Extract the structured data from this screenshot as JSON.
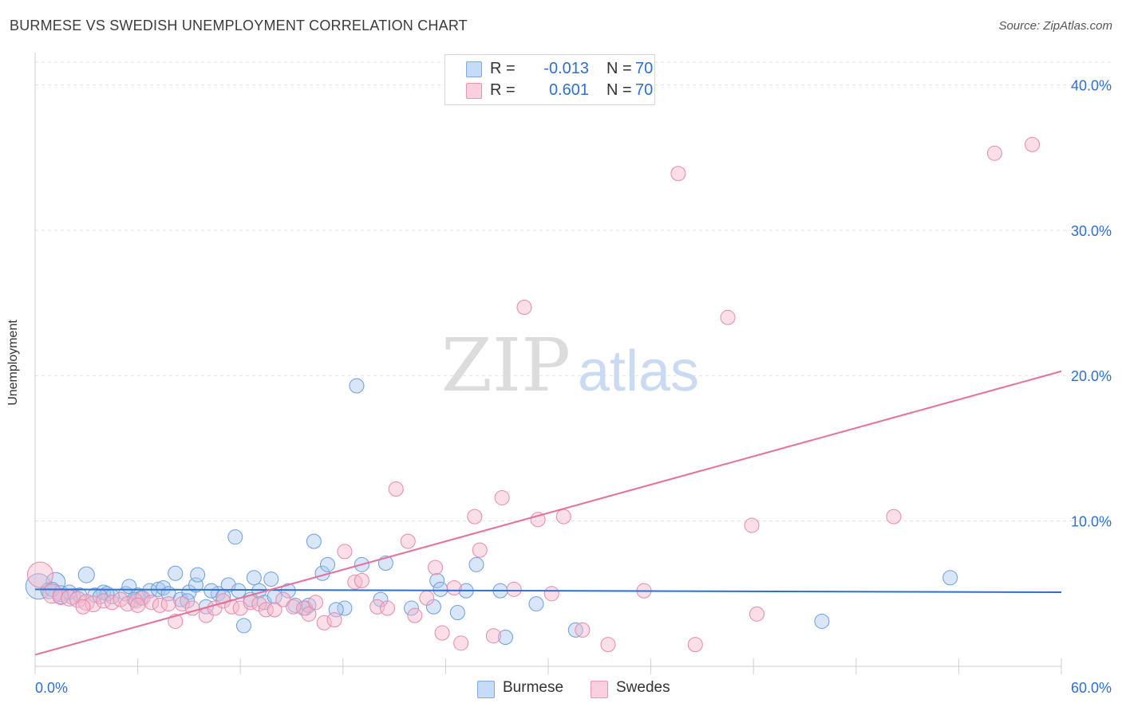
{
  "header": {
    "title": "BURMESE VS SWEDISH UNEMPLOYMENT CORRELATION CHART",
    "source": "Source: ZipAtlas.com"
  },
  "watermark": {
    "zip": "ZIP",
    "atlas": "atlas"
  },
  "legend": {
    "rows": [
      {
        "r_label": "R =",
        "r_value": "-0.013",
        "n_label": "N =",
        "n_value": "70",
        "color": "#a9c7f0"
      },
      {
        "r_label": "R =",
        "r_value": "0.601",
        "n_label": "N =",
        "n_value": "70",
        "color": "#f5b8cb"
      }
    ]
  },
  "bottom_legend": {
    "burmese": "Burmese",
    "swedes": "Swedes"
  },
  "chart_data": {
    "type": "scatter",
    "title": "BURMESE VS SWEDISH UNEMPLOYMENT CORRELATION CHART",
    "xlabel": "",
    "ylabel": "Unemployment",
    "xlim": [
      0,
      60
    ],
    "ylim": [
      0,
      42
    ],
    "x_tick_labels": [
      "0.0%",
      "60.0%"
    ],
    "y_ticks": [
      10,
      20,
      30,
      40
    ],
    "y_tick_labels": [
      "10.0%",
      "20.0%",
      "30.0%",
      "40.0%"
    ],
    "grid": true,
    "legend_position": "top-center",
    "series": [
      {
        "name": "Burmese",
        "color": "#a9c7f0",
        "stroke": "#6b9ee0",
        "trend_color": "#2e6fd1",
        "trend": {
          "x": [
            0,
            60
          ],
          "y": [
            5.3,
            5.1
          ]
        },
        "points": [
          [
            0.2,
            5.5,
            16
          ],
          [
            1.2,
            5.8,
            12
          ],
          [
            0.8,
            5.2,
            10
          ],
          [
            1.5,
            5.0,
            10
          ],
          [
            2.2,
            4.8,
            10
          ],
          [
            3.0,
            6.3,
            10
          ],
          [
            2.6,
            4.9,
            9
          ],
          [
            4.0,
            5.1,
            9
          ],
          [
            4.5,
            4.8,
            9
          ],
          [
            5.3,
            5.0,
            9
          ],
          [
            5.5,
            5.5,
            9
          ],
          [
            6.0,
            4.9,
            9
          ],
          [
            6.7,
            5.2,
            9
          ],
          [
            7.2,
            5.3,
            9
          ],
          [
            7.5,
            5.4,
            9
          ],
          [
            7.8,
            5.0,
            9
          ],
          [
            8.2,
            6.4,
            9
          ],
          [
            8.5,
            4.6,
            9
          ],
          [
            9.0,
            5.1,
            9
          ],
          [
            9.4,
            5.6,
            9
          ],
          [
            9.5,
            6.3,
            9
          ],
          [
            10.0,
            4.1,
            9
          ],
          [
            10.7,
            5.0,
            9
          ],
          [
            11.3,
            5.6,
            9
          ],
          [
            11.7,
            8.9,
            9
          ],
          [
            11.9,
            5.2,
            9
          ],
          [
            12.2,
            2.8,
            9
          ],
          [
            12.8,
            6.1,
            9
          ],
          [
            13.1,
            5.2,
            9
          ],
          [
            13.8,
            6.0,
            9
          ],
          [
            14.8,
            5.2,
            9
          ],
          [
            15.8,
            4.0,
            9
          ],
          [
            16.3,
            8.6,
            9
          ],
          [
            16.8,
            6.4,
            9
          ],
          [
            17.1,
            7.0,
            9
          ],
          [
            18.1,
            4.0,
            9
          ],
          [
            19.1,
            7.0,
            9
          ],
          [
            18.8,
            19.3,
            9
          ],
          [
            20.5,
            7.1,
            9
          ],
          [
            23.3,
            4.1,
            9
          ],
          [
            23.5,
            5.9,
            9
          ],
          [
            23.7,
            5.3,
            9
          ],
          [
            24.7,
            3.7,
            9
          ],
          [
            25.2,
            5.2,
            9
          ],
          [
            25.8,
            7.0,
            9
          ],
          [
            27.2,
            5.2,
            9
          ],
          [
            27.5,
            2.0,
            9
          ],
          [
            29.3,
            4.3,
            9
          ],
          [
            31.6,
            2.5,
            9
          ],
          [
            1.5,
            4.8,
            9
          ],
          [
            2.0,
            5.1,
            9
          ],
          [
            3.5,
            4.9,
            9
          ],
          [
            4.2,
            5.0,
            9
          ],
          [
            6.2,
            4.7,
            9
          ],
          [
            8.9,
            4.5,
            9
          ],
          [
            10.3,
            5.2,
            9
          ],
          [
            11.0,
            4.8,
            9
          ],
          [
            13.4,
            4.4,
            9
          ],
          [
            14.0,
            4.8,
            9
          ],
          [
            15.2,
            4.2,
            9
          ],
          [
            16.0,
            4.2,
            9
          ],
          [
            17.6,
            3.9,
            9
          ],
          [
            20.2,
            4.6,
            9
          ],
          [
            22.0,
            4.0,
            9
          ],
          [
            1.0,
            5.3,
            9
          ],
          [
            3.8,
            4.8,
            9
          ],
          [
            5.8,
            4.6,
            9
          ],
          [
            12.6,
            4.6,
            9
          ],
          [
            46.0,
            3.1,
            9
          ],
          [
            53.5,
            6.1,
            9
          ]
        ]
      },
      {
        "name": "Swedes",
        "color": "#f5b8cb",
        "stroke": "#e889a8",
        "trend_color": "#e86f9b",
        "trend": {
          "x": [
            0,
            60
          ],
          "y": [
            0.8,
            20.3
          ]
        },
        "points": [
          [
            0.3,
            6.3,
            16
          ],
          [
            1.0,
            5.0,
            12
          ],
          [
            1.5,
            4.8,
            10
          ],
          [
            2.0,
            4.7,
            10
          ],
          [
            2.5,
            4.6,
            10
          ],
          [
            3.0,
            4.4,
            10
          ],
          [
            3.4,
            4.3,
            10
          ],
          [
            4.0,
            4.5,
            9
          ],
          [
            4.5,
            4.4,
            9
          ],
          [
            5.0,
            4.6,
            9
          ],
          [
            5.4,
            4.3,
            9
          ],
          [
            5.9,
            4.5,
            9
          ],
          [
            6.3,
            4.7,
            9
          ],
          [
            6.8,
            4.4,
            9
          ],
          [
            7.3,
            4.2,
            9
          ],
          [
            7.8,
            4.3,
            9
          ],
          [
            8.2,
            3.1,
            9
          ],
          [
            8.6,
            4.3,
            9
          ],
          [
            9.2,
            4.0,
            9
          ],
          [
            10.0,
            3.5,
            9
          ],
          [
            10.5,
            4.0,
            9
          ],
          [
            11.0,
            4.5,
            9
          ],
          [
            11.5,
            4.1,
            9
          ],
          [
            12.0,
            4.0,
            9
          ],
          [
            12.6,
            4.4,
            9
          ],
          [
            13.1,
            4.3,
            9
          ],
          [
            13.5,
            3.9,
            9
          ],
          [
            14.0,
            3.9,
            9
          ],
          [
            14.5,
            4.6,
            9
          ],
          [
            15.1,
            4.1,
            9
          ],
          [
            15.7,
            4.0,
            9
          ],
          [
            16.0,
            3.6,
            9
          ],
          [
            16.4,
            4.4,
            9
          ],
          [
            16.9,
            3.0,
            9
          ],
          [
            17.5,
            3.2,
            9
          ],
          [
            18.1,
            7.9,
            9
          ],
          [
            18.7,
            5.8,
            9
          ],
          [
            19.1,
            5.9,
            9
          ],
          [
            20.0,
            4.1,
            9
          ],
          [
            20.6,
            4.0,
            9
          ],
          [
            21.1,
            12.2,
            9
          ],
          [
            21.8,
            8.6,
            9
          ],
          [
            22.2,
            3.5,
            9
          ],
          [
            22.9,
            4.7,
            9
          ],
          [
            23.4,
            6.8,
            9
          ],
          [
            23.8,
            2.3,
            9
          ],
          [
            24.5,
            5.4,
            9
          ],
          [
            24.9,
            1.6,
            9
          ],
          [
            25.7,
            10.3,
            9
          ],
          [
            26.0,
            8.0,
            9
          ],
          [
            26.8,
            2.1,
            9
          ],
          [
            27.3,
            11.6,
            9
          ],
          [
            28.0,
            5.3,
            9
          ],
          [
            28.6,
            24.7,
            9
          ],
          [
            29.4,
            10.1,
            9
          ],
          [
            30.2,
            5.0,
            9
          ],
          [
            30.9,
            10.3,
            9
          ],
          [
            32.0,
            2.5,
            9
          ],
          [
            33.5,
            1.5,
            9
          ],
          [
            35.6,
            5.2,
            9
          ],
          [
            37.6,
            33.9,
            9
          ],
          [
            38.6,
            1.5,
            9
          ],
          [
            40.5,
            24.0,
            9
          ],
          [
            41.9,
            9.7,
            9
          ],
          [
            42.2,
            3.6,
            9
          ],
          [
            50.2,
            10.3,
            9
          ],
          [
            56.1,
            35.3,
            9
          ],
          [
            58.3,
            35.9,
            9
          ],
          [
            2.8,
            4.1,
            9
          ],
          [
            6.0,
            4.2,
            9
          ]
        ]
      }
    ]
  }
}
